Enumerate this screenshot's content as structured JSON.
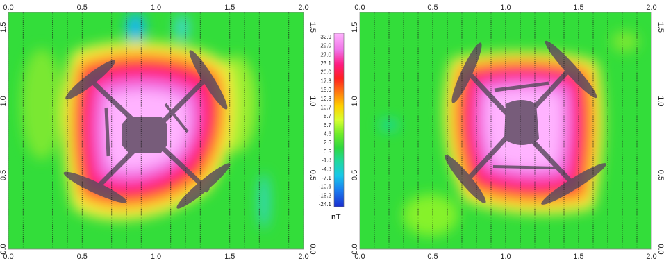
{
  "chart_data": [
    {
      "type": "heatmap",
      "panel": "left",
      "x_ticks": [
        "0.0",
        "0.5",
        "1.0",
        "1.5",
        "2.0"
      ],
      "y_ticks": [
        "0.0",
        "0.5",
        "1.0",
        "1.5"
      ],
      "xlim": [
        0,
        2.0
      ],
      "ylim": [
        0,
        1.6
      ],
      "survey_lines_x": [
        0.0,
        0.1,
        0.2,
        0.3,
        0.4,
        0.5,
        0.6,
        0.7,
        0.8,
        0.9,
        1.0,
        1.1,
        1.2,
        1.3,
        1.4,
        1.5,
        1.6,
        1.7,
        1.8,
        1.9,
        2.0
      ],
      "anomaly": {
        "center": [
          0.9,
          0.82
        ],
        "peak_nT": 32.9,
        "shape": "rounded-square"
      },
      "blue_spots": [
        {
          "x": 0.78,
          "y": 1.5
        },
        {
          "x": 1.0,
          "y": 1.5
        },
        {
          "x": 1.72,
          "y": 0.3
        }
      ],
      "drone_overlay": {
        "center": [
          0.9,
          0.82
        ],
        "rotors": [
          [
            0.5,
            1.18
          ],
          [
            1.32,
            1.18
          ],
          [
            0.5,
            0.45
          ],
          [
            1.32,
            0.4
          ]
        ]
      }
    },
    {
      "type": "heatmap",
      "panel": "right",
      "x_ticks": [
        "0.0",
        "0.5",
        "1.0",
        "1.5",
        "2.0"
      ],
      "y_ticks": [
        "0.0",
        "0.5",
        "1.0",
        "1.5"
      ],
      "xlim": [
        0,
        2.0
      ],
      "ylim": [
        0,
        1.6
      ],
      "survey_lines_x": [
        0.0,
        0.1,
        0.2,
        0.3,
        0.4,
        0.5,
        0.6,
        0.7,
        0.8,
        0.9,
        1.0,
        1.1,
        1.2,
        1.3,
        1.4,
        1.5,
        1.6,
        1.7,
        1.8,
        1.9,
        2.0
      ],
      "anomaly": {
        "center": [
          1.08,
          0.95
        ],
        "peak_nT": 32.9,
        "shape": "rounded-square"
      },
      "blue_spots": [
        {
          "x": 0.2,
          "y": 0.8
        }
      ],
      "drone_overlay": {
        "center": [
          1.05,
          0.9
        ],
        "rotors": [
          [
            0.7,
            1.25
          ],
          [
            1.5,
            1.25
          ],
          [
            0.7,
            0.5
          ],
          [
            1.5,
            0.45
          ]
        ]
      }
    }
  ],
  "colorbar": {
    "unit": "nT",
    "ticks": [
      "32.9",
      "29.0",
      "27.0",
      "23.1",
      "20.0",
      "17.3",
      "15.0",
      "12.8",
      "10.7",
      "8.7",
      "6.7",
      "4.6",
      "2.6",
      "0.5",
      "-1.8",
      "-4.3",
      "-7.1",
      "-10.6",
      "-15.2",
      "-24.1"
    ],
    "colors": [
      "#ffb3ff",
      "#f58cf0",
      "#ff66e8",
      "#ff2aa0",
      "#ff0040",
      "#ff3a26",
      "#ff7a1a",
      "#ffb200",
      "#ffe600",
      "#f0ff40",
      "#bfff30",
      "#86f22a",
      "#4ee02e",
      "#2ed24a",
      "#1fd89a",
      "#1ad9d0",
      "#14b6f0",
      "#1a88f0",
      "#1550e8",
      "#1a2ed0"
    ]
  },
  "colors": {
    "background_field": "#33dd3a",
    "survey_line": "#1a1a1a",
    "drone": "#5a4a5e"
  }
}
